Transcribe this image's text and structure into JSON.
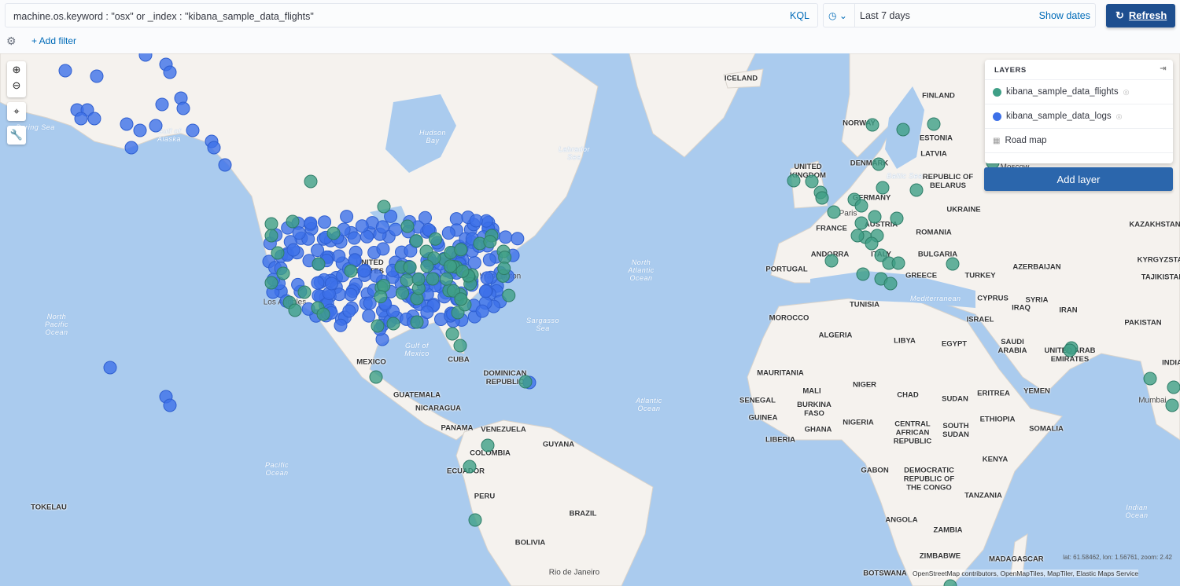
{
  "query": {
    "value": "machine.os.keyword : \"osx\" or _index : \"kibana_sample_data_flights\"",
    "language": "KQL"
  },
  "time": {
    "range": "Last 7 days",
    "show_dates": "Show dates",
    "quick_icon": "clock-icon"
  },
  "refresh_label": "Refresh",
  "add_filter": "+ Add filter",
  "layers": {
    "title": "LAYERS",
    "items": [
      {
        "label": "kibana_sample_data_flights",
        "color": "#3f9f86"
      },
      {
        "label": "kibana_sample_data_logs",
        "color": "#3d70e8"
      },
      {
        "label": "Road map",
        "icon": "grid-icon"
      }
    ],
    "add_layer": "Add layer"
  },
  "map": {
    "coords": "lat: 61.58462, lon: 1.56761, zoom: 2.42",
    "attribution": "OpenStreetMap contributors, OpenMapTiles, MapTiler, Elastic Maps Service",
    "countries": [
      "ICELAND",
      "FINLAND",
      "NORWAY",
      "ESTONIA",
      "LATVIA",
      "DENMARK",
      "UNITED KINGDOM",
      "REPUBLIC OF BELARUS",
      "GERMANY",
      "UKRAINE",
      "FRANCE",
      "AUSTRIA",
      "ROMANIA",
      "KAZAKHSTAN",
      "ANDORRA",
      "ITALY",
      "BULGARIA",
      "PORTUGAL",
      "GREECE",
      "TURKEY",
      "AZERBAIJAN",
      "KYRGYZSTAN",
      "TAJIKISTAN",
      "TUNISIA",
      "CYPRUS",
      "SYRIA",
      "IRAN",
      "MOROCCO",
      "ISRAEL",
      "IRAQ",
      "PAKISTAN",
      "ALGERIA",
      "LIBYA",
      "EGYPT",
      "SAUDI ARABIA",
      "UNITED ARAB EMIRATES",
      "INDIA",
      "MAURITANIA",
      "MALI",
      "NIGER",
      "CHAD",
      "SUDAN",
      "ERITREA",
      "YEMEN",
      "SENEGAL",
      "BURKINA FASO",
      "GUINEA",
      "GHANA",
      "NIGERIA",
      "CENTRAL AFRICAN REPUBLIC",
      "ETHIOPIA",
      "SOUTH SUDAN",
      "SOMALIA",
      "LIBERIA",
      "KENYA",
      "GABON",
      "DEMOCRATIC REPUBLIC OF THE CONGO",
      "TANZANIA",
      "ANGOLA",
      "ZAMBIA",
      "ZIMBABWE",
      "MADAGASCAR",
      "BOTSWANA",
      "MEXICO",
      "CUBA",
      "DOMINICAN REPUBLIC",
      "GUATEMALA",
      "NICARAGUA",
      "PANAMA",
      "VENEZUELA",
      "GUYANA",
      "COLOMBIA",
      "ECUADOR",
      "PERU",
      "BRAZIL",
      "BOLIVIA",
      "TOKELAU",
      "UNITED STATES"
    ],
    "cities": [
      "Los Angeles",
      "Washington",
      "Paris",
      "Rio de Janeiro",
      "Mumbai",
      "Moscow"
    ],
    "waters": [
      "Hudson Bay",
      "Labrador Sea",
      "Bering Sea",
      "Gulf of Alaska",
      "North Atlantic Ocean",
      "Sargasso Sea",
      "Gulf of Mexico",
      "North Pacific Ocean",
      "Pacific Ocean",
      "Atlantic Ocean",
      "Indian Ocean",
      "Mediterranean",
      "Baltic Sea"
    ]
  }
}
